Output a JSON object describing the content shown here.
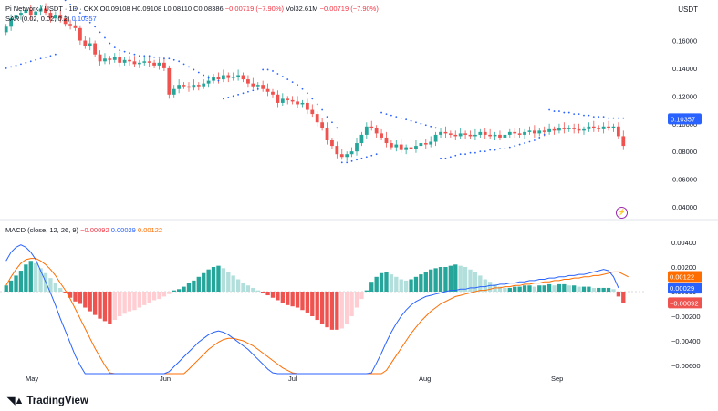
{
  "header": {
    "symbol": "Pi Network / USDT · 1D · OKX",
    "open": "O0.09108",
    "high": "H0.09108",
    "low": "L0.08110",
    "close": "C0.08386",
    "change": "−0.00719 (−7.90%)",
    "volume": "Vol32.61M",
    "change2": "−0.00719 (−7.90%)",
    "sar_label": "SAR (0.02, 0.02, 0.2)",
    "sar_value": "0.10357",
    "currency": "USDT"
  },
  "macd_header": {
    "label": "MACD (close, 12, 26, 9)",
    "hist": "−0.00092",
    "macd": "0.00029",
    "signal": "0.00122"
  },
  "branding": {
    "name": "TradingView"
  },
  "colors": {
    "up": "#26a69a",
    "down": "#ef5350",
    "sar": "#2962ff",
    "macd": "#2962ff",
    "signal": "#ff6d00",
    "hist_up_strong": "#26a69a",
    "hist_up_weak": "#b2dfdb",
    "hist_down_strong": "#ef5350",
    "hist_down_weak": "#ffcdd2"
  },
  "chart_data": [
    {
      "type": "candlestick",
      "title": "",
      "ylim": [
        0.035,
        0.19
      ],
      "yticks": [
        "0.16000",
        "0.14000",
        "0.12000",
        "0.10000",
        "0.08000",
        "0.06000",
        "0.04000"
      ],
      "xticks": [
        "May",
        "Jun",
        "Jul",
        "Aug",
        "Sep"
      ],
      "last_price_badge": "0.10357",
      "closes": [
        0.17,
        0.176,
        0.178,
        0.18,
        0.182,
        0.178,
        0.181,
        0.183,
        0.18,
        0.176,
        0.178,
        0.176,
        0.172,
        0.171,
        0.169,
        0.16,
        0.156,
        0.158,
        0.15,
        0.145,
        0.147,
        0.146,
        0.148,
        0.144,
        0.146,
        0.145,
        0.143,
        0.144,
        0.145,
        0.144,
        0.142,
        0.144,
        0.14,
        0.121,
        0.125,
        0.128,
        0.127,
        0.126,
        0.128,
        0.127,
        0.129,
        0.131,
        0.134,
        0.132,
        0.135,
        0.133,
        0.134,
        0.135,
        0.132,
        0.129,
        0.127,
        0.128,
        0.125,
        0.123,
        0.121,
        0.115,
        0.118,
        0.117,
        0.116,
        0.114,
        0.115,
        0.11,
        0.107,
        0.101,
        0.097,
        0.088,
        0.084,
        0.078,
        0.076,
        0.078,
        0.08,
        0.086,
        0.092,
        0.098,
        0.097,
        0.093,
        0.09,
        0.086,
        0.083,
        0.085,
        0.081,
        0.083,
        0.082,
        0.084,
        0.086,
        0.085,
        0.087,
        0.092,
        0.094,
        0.093,
        0.092,
        0.091,
        0.093,
        0.092,
        0.091,
        0.092,
        0.094,
        0.092,
        0.091,
        0.092,
        0.09,
        0.092,
        0.094,
        0.093,
        0.092,
        0.094,
        0.095,
        0.093,
        0.095,
        0.094,
        0.096,
        0.095,
        0.097,
        0.096,
        0.097,
        0.096,
        0.095,
        0.096,
        0.098,
        0.097,
        0.096,
        0.098,
        0.097,
        0.098,
        0.091,
        0.084
      ],
      "sar": [
        0.14,
        0.141,
        0.142,
        0.143,
        0.144,
        0.145,
        0.146,
        0.147,
        0.148,
        0.149,
        0.15,
        0.191,
        0.189,
        0.186,
        0.183,
        0.18,
        0.177,
        0.173,
        0.17,
        0.166,
        0.162,
        0.158,
        0.155,
        0.153,
        0.152,
        0.151,
        0.15,
        0.149,
        0.149,
        0.149,
        0.148,
        0.148,
        0.147,
        0.147,
        0.146,
        0.145,
        0.143,
        0.141,
        0.139,
        0.137,
        0.135,
        0.133,
        0.132,
        0.131,
        0.118,
        0.119,
        0.12,
        0.121,
        0.122,
        0.123,
        0.124,
        0.125,
        0.139,
        0.139,
        0.138,
        0.136,
        0.134,
        0.132,
        0.13,
        0.128,
        0.125,
        0.122,
        0.118,
        0.114,
        0.11,
        0.105,
        0.101,
        0.097,
        0.072,
        0.072,
        0.073,
        0.074,
        0.075,
        0.076,
        0.077,
        0.078,
        0.108,
        0.107,
        0.106,
        0.105,
        0.104,
        0.103,
        0.102,
        0.101,
        0.1,
        0.099,
        0.098,
        0.097,
        0.075,
        0.075,
        0.076,
        0.077,
        0.078,
        0.078,
        0.079,
        0.079,
        0.08,
        0.08,
        0.081,
        0.081,
        0.082,
        0.082,
        0.083,
        0.084,
        0.085,
        0.086,
        0.087,
        0.088,
        0.09,
        0.092,
        0.11,
        0.109,
        0.109,
        0.108,
        0.108,
        0.107,
        0.107,
        0.106,
        0.106,
        0.105,
        0.105,
        0.105,
        0.104,
        0.104,
        0.104,
        0.104
      ]
    },
    {
      "type": "bar",
      "title": "",
      "series_name": "MACD (close, 12, 26, 9)",
      "ylim": [
        -0.0068,
        0.0048
      ],
      "yticks": [
        "0.00400",
        "0.00200",
        "0.00000",
        "−0.00200",
        "−0.00400",
        "−0.00600"
      ],
      "badges": [
        "0.00122",
        "0.00029",
        "−0.00092"
      ],
      "histogram": [
        0.0005,
        0.0009,
        0.0013,
        0.0017,
        0.0022,
        0.0025,
        0.0023,
        0.0019,
        0.0015,
        0.0011,
        0.0007,
        0.0003,
        -0.0001,
        -0.0005,
        -0.0008,
        -0.001,
        -0.0013,
        -0.0016,
        -0.0019,
        -0.0022,
        -0.0024,
        -0.0026,
        -0.0023,
        -0.002,
        -0.0018,
        -0.0016,
        -0.0015,
        -0.0013,
        -0.0011,
        -0.0009,
        -0.0007,
        -0.0006,
        -0.0004,
        -0.0002,
        0.0001,
        0.0002,
        0.0004,
        0.0007,
        0.0009,
        0.0012,
        0.0015,
        0.0018,
        0.002,
        0.0021,
        0.0019,
        0.0016,
        0.0013,
        0.001,
        0.0007,
        0.0005,
        0.0003,
        0.0001,
        -0.0001,
        -0.0003,
        -0.0005,
        -0.0007,
        -0.0009,
        -0.0011,
        -0.0012,
        -0.0013,
        -0.0015,
        -0.0017,
        -0.002,
        -0.0023,
        -0.0026,
        -0.0029,
        -0.0031,
        -0.0031,
        -0.003,
        -0.0026,
        -0.002,
        -0.0013,
        -0.0006,
        0.0001,
        0.0008,
        0.0012,
        0.0015,
        0.0016,
        0.0014,
        0.0012,
        0.001,
        0.0009,
        0.001,
        0.0012,
        0.0014,
        0.0016,
        0.0018,
        0.0019,
        0.002,
        0.002,
        0.0021,
        0.0022,
        0.0021,
        0.002,
        0.0018,
        0.0016,
        0.0013,
        0.001,
        0.0008,
        0.0006,
        0.0004,
        0.0003,
        0.0003,
        0.0004,
        0.0004,
        0.0005,
        0.0005,
        0.0004,
        0.0005,
        0.0005,
        0.0006,
        0.0005,
        0.0006,
        0.0006,
        0.0005,
        0.0005,
        0.0004,
        0.0004,
        0.0004,
        0.0003,
        0.0003,
        0.0003,
        0.0003,
        0.0002,
        -0.0004,
        -0.0009
      ],
      "macd_line": [
        0.0025,
        0.0032,
        0.0036,
        0.0038,
        0.0036,
        0.0032,
        0.0026,
        0.0017,
        0.0008,
        -0.0001,
        -0.0011,
        -0.0022,
        -0.0032,
        -0.0042,
        -0.0052,
        -0.006,
        -0.0067,
        -0.0073,
        -0.0078,
        -0.0083,
        -0.0087,
        -0.009,
        -0.0091,
        -0.0091,
        -0.009,
        -0.0089,
        -0.0087,
        -0.0085,
        -0.0082,
        -0.0079,
        -0.0076,
        -0.0072,
        -0.0068,
        -0.0065,
        -0.0061,
        -0.0057,
        -0.0053,
        -0.0049,
        -0.0045,
        -0.0041,
        -0.0038,
        -0.0035,
        -0.0033,
        -0.0032,
        -0.0033,
        -0.0035,
        -0.0038,
        -0.0041,
        -0.0044,
        -0.0047,
        -0.0051,
        -0.0055,
        -0.0059,
        -0.0063,
        -0.0066,
        -0.0069,
        -0.0071,
        -0.0072,
        -0.0073,
        -0.0074,
        -0.0075,
        -0.0076,
        -0.0077,
        -0.0078,
        -0.008,
        -0.0082,
        -0.0084,
        -0.0086,
        -0.0087,
        -0.0087,
        -0.0085,
        -0.0082,
        -0.0078,
        -0.0073,
        -0.0066,
        -0.0058,
        -0.005,
        -0.0041,
        -0.0033,
        -0.0026,
        -0.002,
        -0.0015,
        -0.0011,
        -0.0008,
        -0.0006,
        -0.0004,
        -0.0003,
        -0.0002,
        -0.0001,
        0.0,
        0.0001,
        0.0001,
        0.0002,
        0.0002,
        0.0003,
        0.0003,
        0.0004,
        0.0004,
        0.0005,
        0.0005,
        0.0006,
        0.0006,
        0.0007,
        0.0007,
        0.0008,
        0.0008,
        0.0009,
        0.0009,
        0.001,
        0.001,
        0.0011,
        0.0011,
        0.0012,
        0.0012,
        0.0013,
        0.0013,
        0.0014,
        0.0014,
        0.0015,
        0.0016,
        0.0017,
        0.0018,
        0.0017,
        0.0012,
        0.0003
      ],
      "signal_line": [
        0.0005,
        0.0012,
        0.0018,
        0.0023,
        0.0026,
        0.0027,
        0.0027,
        0.0025,
        0.0022,
        0.0018,
        0.0013,
        0.0007,
        0.0001,
        -0.0006,
        -0.0014,
        -0.0022,
        -0.003,
        -0.0038,
        -0.0046,
        -0.0053,
        -0.006,
        -0.0066,
        -0.0072,
        -0.0076,
        -0.008,
        -0.0083,
        -0.0085,
        -0.0086,
        -0.0086,
        -0.0085,
        -0.0084,
        -0.0082,
        -0.008,
        -0.0077,
        -0.0074,
        -0.007,
        -0.0067,
        -0.0063,
        -0.0059,
        -0.0055,
        -0.0051,
        -0.0047,
        -0.0044,
        -0.0041,
        -0.0039,
        -0.0038,
        -0.0038,
        -0.0039,
        -0.004,
        -0.0042,
        -0.0044,
        -0.0047,
        -0.005,
        -0.0053,
        -0.0056,
        -0.0059,
        -0.0062,
        -0.0064,
        -0.0066,
        -0.0068,
        -0.007,
        -0.0071,
        -0.0072,
        -0.0073,
        -0.0074,
        -0.0075,
        -0.0076,
        -0.0077,
        -0.0078,
        -0.0079,
        -0.008,
        -0.008,
        -0.0079,
        -0.0078,
        -0.0076,
        -0.0073,
        -0.0069,
        -0.0064,
        -0.0058,
        -0.0052,
        -0.0046,
        -0.004,
        -0.0034,
        -0.0029,
        -0.0024,
        -0.002,
        -0.0016,
        -0.0013,
        -0.001,
        -0.0008,
        -0.0006,
        -0.0004,
        -0.0003,
        -0.0002,
        -0.0001,
        0.0,
        0.0001,
        0.0001,
        0.0002,
        0.0003,
        0.0003,
        0.0004,
        0.0004,
        0.0005,
        0.0005,
        0.0006,
        0.0006,
        0.0007,
        0.0007,
        0.0008,
        0.0008,
        0.0009,
        0.0009,
        0.001,
        0.001,
        0.0011,
        0.0011,
        0.0012,
        0.0012,
        0.0013,
        0.0013,
        0.0014,
        0.0015,
        0.0016,
        0.0016,
        0.0014,
        0.0012
      ]
    }
  ]
}
